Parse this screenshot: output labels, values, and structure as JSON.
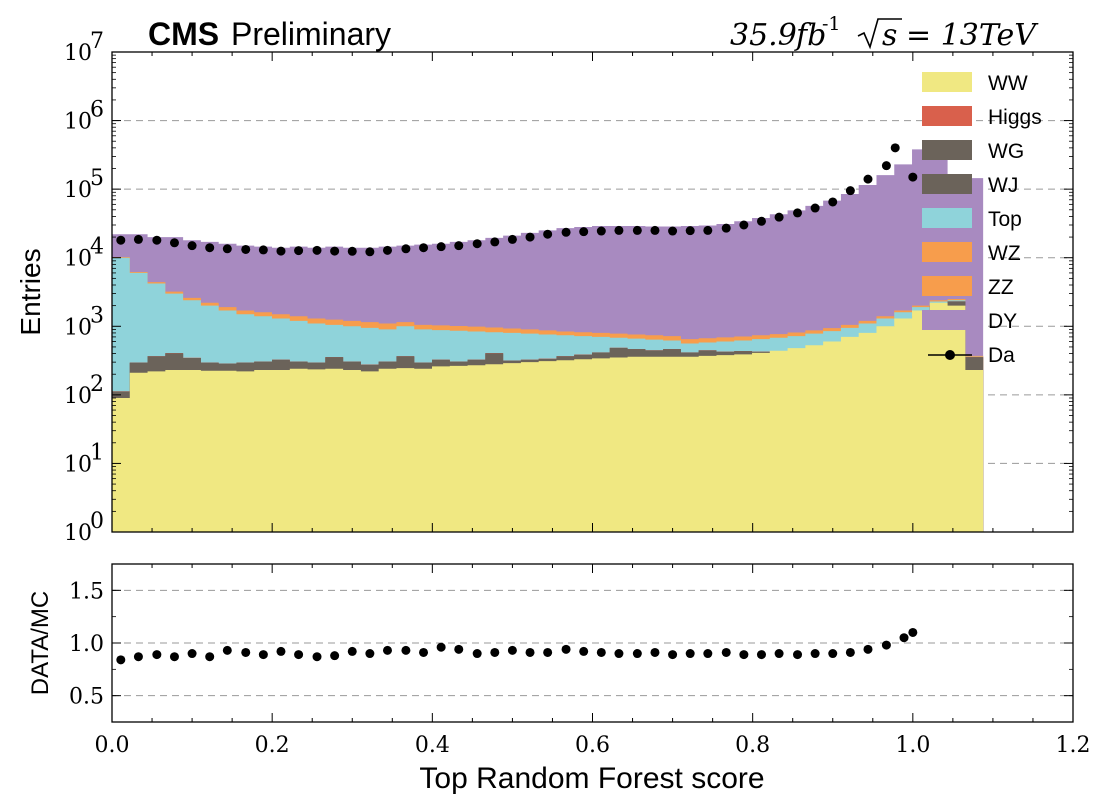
{
  "header": {
    "experiment": "CMS",
    "status": "Preliminary",
    "luminosity": "35.9",
    "lumi_unit": "fb",
    "lumi_exp": "-1",
    "sqrt_label": "s",
    "energy": "= 13TeV"
  },
  "chart_data": [
    {
      "type": "area",
      "subtype": "stacked-step-histogram",
      "xlabel": "Top Random Forest score",
      "ylabel": "Entries",
      "yscale": "log",
      "xlim": [
        0.0,
        1.2
      ],
      "ylim": [
        1,
        10000000
      ],
      "x_ticks": [
        "0.0",
        "0.2",
        "0.4",
        "0.6",
        "0.8",
        "1.0",
        "1.2"
      ],
      "y_tick_bases": [
        "10",
        "10",
        "10",
        "10",
        "10",
        "10",
        "10",
        "10"
      ],
      "y_tick_exponents": [
        "0",
        "1",
        "2",
        "3",
        "4",
        "5",
        "6",
        "7"
      ],
      "grid": "horizontal dashed",
      "legend_position": "top-right",
      "bin_edges_start": 0.0,
      "bin_width": 0.0222,
      "colors": {
        "WW": "#f0e882",
        "Higgs": "#d9604c",
        "WG": "#6b635a",
        "WJ": "#6b635a",
        "Top": "#8fd3da",
        "WZ": "#f79d4c",
        "ZZ": "#f79d4c",
        "DY": "#a88ac0",
        "Da": "#000000"
      },
      "legend": [
        "WW",
        "Higgs",
        "WG",
        "WJ",
        "Top",
        "WZ",
        "ZZ",
        "DY",
        "Da"
      ],
      "stack_cumulative": [
        {
          "name": "WW",
          "values": [
            90,
            210,
            220,
            230,
            230,
            225,
            225,
            220,
            230,
            230,
            240,
            235,
            240,
            230,
            220,
            240,
            245,
            240,
            260,
            265,
            270,
            280,
            290,
            300,
            310,
            320,
            330,
            340,
            350,
            360,
            360,
            360,
            360,
            370,
            380,
            390,
            410,
            440,
            480,
            530,
            600,
            700,
            800,
            1000,
            1300,
            1700,
            2200,
            2000,
            230
          ]
        },
        {
          "name": "WG",
          "values": [
            110,
            290,
            360,
            400,
            340,
            290,
            280,
            290,
            300,
            320,
            300,
            290,
            350,
            300,
            270,
            300,
            360,
            290,
            320,
            300,
            320,
            400,
            310,
            320,
            330,
            360,
            380,
            410,
            480,
            460,
            440,
            460,
            410,
            440,
            420,
            430,
            420,
            410,
            390,
            420,
            470,
            540,
            610,
            750,
            1000,
            1400,
            2000,
            2300,
            350
          ]
        },
        {
          "name": "WJ",
          "values": [
            112,
            295,
            365,
            405,
            345,
            295,
            285,
            295,
            305,
            325,
            305,
            295,
            355,
            305,
            275,
            305,
            365,
            295,
            325,
            305,
            325,
            405,
            315,
            325,
            335,
            365,
            385,
            415,
            485,
            465,
            445,
            465,
            415,
            445,
            425,
            435,
            425,
            415,
            395,
            425,
            475,
            545,
            615,
            755,
            1005,
            1405,
            2005,
            2305,
            355
          ]
        },
        {
          "name": "Higgs",
          "values": [
            113,
            297,
            367,
            407,
            347,
            297,
            287,
            297,
            307,
            327,
            307,
            297,
            357,
            307,
            277,
            307,
            367,
            297,
            327,
            307,
            327,
            407,
            317,
            327,
            337,
            367,
            387,
            417,
            487,
            467,
            447,
            467,
            417,
            447,
            427,
            437,
            427,
            417,
            397,
            427,
            477,
            547,
            617,
            757,
            1007,
            1407,
            2007,
            2307,
            357
          ]
        },
        {
          "name": "Top",
          "values": [
            10000,
            6000,
            4200,
            3000,
            2400,
            2000,
            1700,
            1500,
            1400,
            1300,
            1200,
            1100,
            1050,
            1000,
            950,
            900,
            1000,
            900,
            880,
            860,
            840,
            820,
            800,
            780,
            760,
            740,
            720,
            700,
            680,
            660,
            640,
            620,
            560,
            580,
            600,
            620,
            650,
            680,
            720,
            780,
            850,
            950,
            1100,
            1300,
            1600,
            1900,
            2300,
            2400,
            360
          ]
        },
        {
          "name": "WZ",
          "values": [
            10100,
            6100,
            4300,
            3100,
            2500,
            2100,
            1800,
            1600,
            1500,
            1400,
            1300,
            1200,
            1150,
            1100,
            1050,
            1000,
            1100,
            1000,
            980,
            960,
            940,
            920,
            890,
            860,
            830,
            800,
            780,
            760,
            740,
            720,
            700,
            680,
            610,
            630,
            650,
            670,
            700,
            730,
            770,
            830,
            900,
            1000,
            1150,
            1350,
            1650,
            1950,
            2350,
            2450,
            365
          ]
        },
        {
          "name": "ZZ",
          "values": [
            10200,
            6200,
            4400,
            3200,
            2600,
            2200,
            1900,
            1700,
            1600,
            1500,
            1400,
            1300,
            1250,
            1200,
            1150,
            1100,
            1150,
            1050,
            1030,
            1010,
            990,
            960,
            930,
            900,
            870,
            840,
            820,
            800,
            780,
            760,
            740,
            720,
            650,
            670,
            690,
            710,
            740,
            770,
            810,
            870,
            940,
            1050,
            1200,
            1400,
            1700,
            2000,
            2400,
            2500,
            370
          ]
        },
        {
          "name": "DY",
          "values": [
            22000,
            22000,
            20000,
            20000,
            18000,
            17000,
            16000,
            15000,
            14500,
            14000,
            14500,
            14000,
            14500,
            14000,
            14000,
            14500,
            15000,
            15500,
            16000,
            17000,
            18000,
            19500,
            21000,
            23000,
            25000,
            27000,
            28000,
            29000,
            29000,
            29000,
            28500,
            28500,
            29000,
            29500,
            31000,
            34000,
            38000,
            43000,
            49000,
            57000,
            68000,
            85000,
            115000,
            160000,
            230000,
            380000,
            500000,
            130000,
            145000
          ]
        }
      ],
      "data_points": {
        "name": "Da",
        "x": [
          0.011,
          0.033,
          0.056,
          0.078,
          0.1,
          0.122,
          0.144,
          0.167,
          0.189,
          0.211,
          0.233,
          0.256,
          0.278,
          0.3,
          0.322,
          0.344,
          0.367,
          0.389,
          0.411,
          0.433,
          0.456,
          0.478,
          0.5,
          0.522,
          0.544,
          0.567,
          0.589,
          0.611,
          0.633,
          0.656,
          0.678,
          0.7,
          0.722,
          0.744,
          0.767,
          0.789,
          0.811,
          0.833,
          0.856,
          0.878,
          0.9,
          0.922,
          0.944,
          0.967,
          0.978,
          1.0
        ],
        "y": [
          18000,
          18500,
          18000,
          16500,
          15000,
          14000,
          13500,
          13200,
          13000,
          12500,
          12700,
          12800,
          12500,
          12400,
          12200,
          12800,
          13500,
          14000,
          14500,
          15000,
          16000,
          17000,
          18500,
          20000,
          22000,
          23500,
          24000,
          24500,
          25000,
          25000,
          25000,
          24500,
          24800,
          25000,
          27000,
          30000,
          34000,
          39000,
          45000,
          53000,
          65000,
          95000,
          140000,
          220000,
          400000,
          150000
        ]
      }
    },
    {
      "type": "scatter",
      "ylabel": "DATA/MC",
      "xlim": [
        0.0,
        1.2
      ],
      "ylim": [
        0.25,
        1.75
      ],
      "y_ticks": [
        "0.5",
        "1.0",
        "1.5"
      ],
      "grid": "horizontal dashed",
      "x": [
        0.011,
        0.033,
        0.056,
        0.078,
        0.1,
        0.122,
        0.144,
        0.167,
        0.189,
        0.211,
        0.233,
        0.256,
        0.278,
        0.3,
        0.322,
        0.344,
        0.367,
        0.389,
        0.411,
        0.433,
        0.456,
        0.478,
        0.5,
        0.522,
        0.544,
        0.567,
        0.589,
        0.611,
        0.633,
        0.656,
        0.678,
        0.7,
        0.722,
        0.744,
        0.767,
        0.789,
        0.811,
        0.833,
        0.856,
        0.878,
        0.9,
        0.922,
        0.944,
        0.967,
        0.989,
        1.0
      ],
      "y": [
        0.84,
        0.87,
        0.89,
        0.87,
        0.9,
        0.87,
        0.93,
        0.91,
        0.89,
        0.92,
        0.89,
        0.87,
        0.88,
        0.92,
        0.9,
        0.93,
        0.93,
        0.91,
        0.96,
        0.94,
        0.9,
        0.91,
        0.93,
        0.91,
        0.91,
        0.94,
        0.92,
        0.91,
        0.9,
        0.9,
        0.91,
        0.89,
        0.9,
        0.9,
        0.91,
        0.89,
        0.89,
        0.9,
        0.89,
        0.9,
        0.9,
        0.91,
        0.94,
        0.98,
        1.05,
        1.1
      ]
    }
  ]
}
